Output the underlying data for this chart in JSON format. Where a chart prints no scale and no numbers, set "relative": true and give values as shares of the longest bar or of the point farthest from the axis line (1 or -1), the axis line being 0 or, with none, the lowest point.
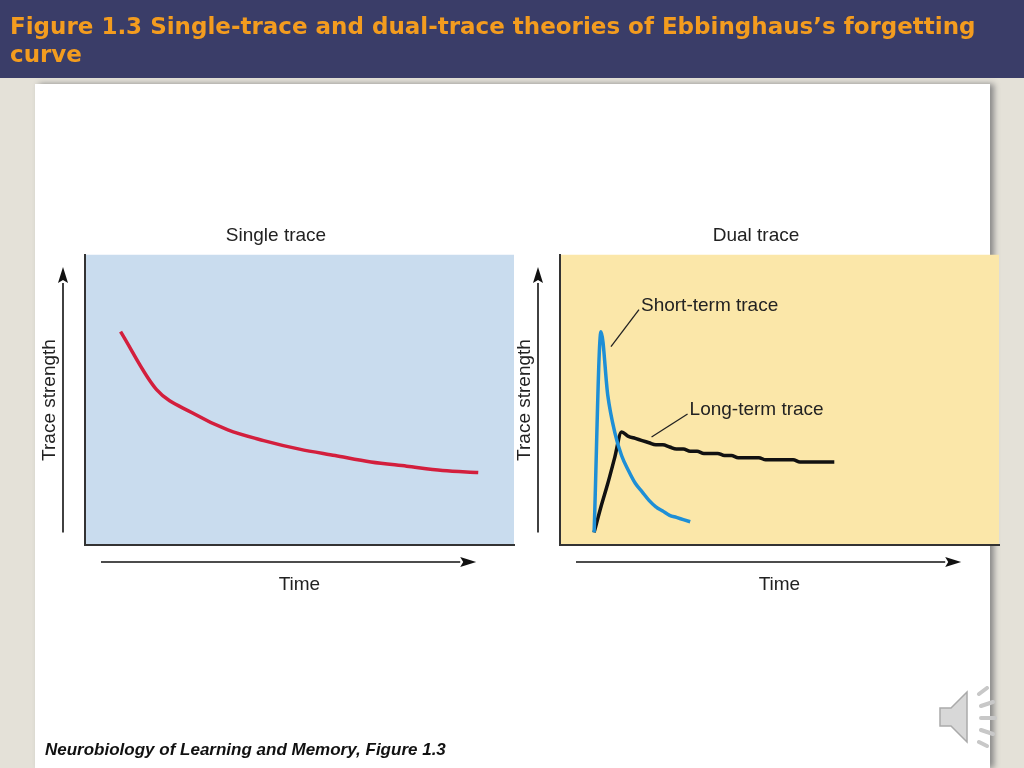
{
  "chart_data": [
    {
      "type": "line",
      "title": "Single trace",
      "xlabel": "Time",
      "ylabel": "Trace strength",
      "relative": true,
      "marker": "none",
      "categories": [
        null,
        null,
        null,
        null,
        null,
        null,
        null,
        null,
        null,
        null,
        null,
        null,
        null
      ],
      "series": [
        {
          "color": "#d31f3d",
          "values": [
            null,
            1,
            0.73,
            0.62,
            0.54,
            0.49,
            0.45,
            0.42,
            0.39,
            0.37,
            0.35,
            0.34,
            null
          ]
        }
      ],
      "annotations": [
        "Figure 1.3  Single-trace and dual-trace theories of Ebbinghaus’s forgetting curve",
        "Neurobiology of Learning and Memory, Figure 1.3"
      ]
    },
    {
      "type": "line",
      "title": "Dual trace",
      "xlabel": "Time",
      "ylabel": "Trace strength",
      "relative": true,
      "marker": "none",
      "categories": [
        null,
        null,
        null,
        null,
        null,
        null,
        null,
        null,
        null,
        null,
        null,
        null,
        null,
        null,
        null,
        null,
        null,
        null,
        null,
        null,
        null,
        null,
        null,
        null,
        null,
        null,
        null,
        null,
        null,
        null,
        null,
        null,
        null,
        null,
        null,
        null,
        null,
        null,
        null,
        null,
        null,
        null,
        null,
        null,
        null,
        null,
        null,
        null,
        null,
        null,
        null,
        null,
        null,
        null,
        null,
        null,
        null,
        null,
        null,
        null,
        null,
        null,
        null,
        null,
        null
      ],
      "series": [
        {
          "name": "Short-term trace",
          "color": "#1e8fd6",
          "values": [
            null,
            null,
            null,
            null,
            null,
            0.06,
            1,
            0.7,
            0.53,
            0.42,
            0.35,
            0.29,
            0.25,
            0.21,
            0.18,
            0.16,
            0.14,
            0.13,
            0.12,
            0.11,
            null,
            null,
            null,
            null,
            null,
            null,
            null,
            null,
            null,
            null,
            null,
            null,
            null,
            null,
            null,
            null,
            null,
            null,
            null,
            null,
            null,
            null,
            null,
            null,
            null,
            null,
            null,
            null,
            null,
            null,
            null,
            null,
            null,
            null,
            null,
            null,
            null,
            null,
            null,
            null,
            null,
            null,
            null,
            null,
            null
          ]
        },
        {
          "name": "Long-term trace",
          "color": "#111111",
          "values": [
            null,
            null,
            null,
            null,
            null,
            0.06,
            0.18,
            0.29,
            0.41,
            0.53,
            0.51,
            0.5,
            0.49,
            0.48,
            0.47,
            0.47,
            0.46,
            0.45,
            0.45,
            0.44,
            0.44,
            0.43,
            0.43,
            0.43,
            0.42,
            0.42,
            0.41,
            0.41,
            0.41,
            0.41,
            0.4,
            0.4,
            0.4,
            0.4,
            0.4,
            0.39,
            0.39,
            0.39,
            0.39,
            0.39,
            0.39,
            null,
            null,
            null,
            null,
            null,
            null,
            null,
            null,
            null,
            null,
            null,
            null,
            null,
            null,
            null,
            null,
            null,
            null,
            null,
            null,
            null,
            null,
            null,
            null
          ]
        }
      ]
    }
  ]
}
